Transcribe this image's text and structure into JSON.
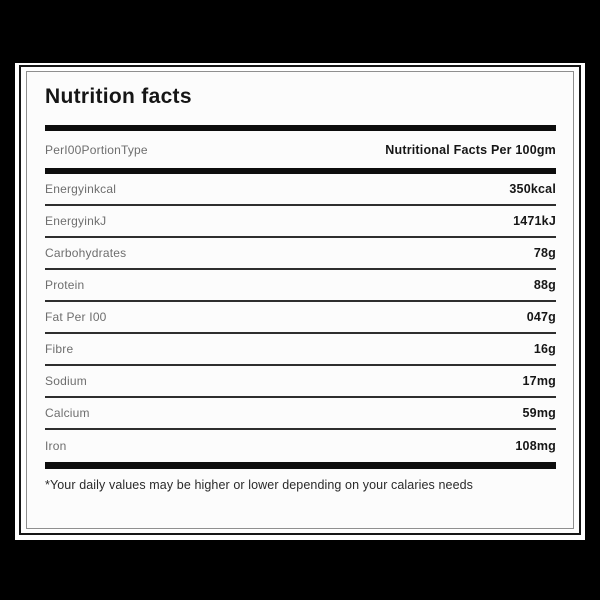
{
  "title": "Nutrition facts",
  "header_row": {
    "label": "PerI00PortionType",
    "value": "Nutritional Facts Per 100gm"
  },
  "rows": [
    {
      "label": "Energyinkcal",
      "value": "350kcal"
    },
    {
      "label": "EnergyinkJ",
      "value": "1471kJ"
    },
    {
      "label": "Carbohydrates",
      "value": "78g"
    },
    {
      "label": "Protein",
      "value": "88g"
    },
    {
      "label": "Fat Per I00",
      "value": "047g"
    },
    {
      "label": "Fibre",
      "value": "16g"
    },
    {
      "label": "Sodium",
      "value": "17mg"
    },
    {
      "label": "Calcium",
      "value": "59mg"
    },
    {
      "label": "Iron",
      "value": "108mg"
    }
  ],
  "footnote": "*Your daily values may be higher or lower depending on your calaries needs",
  "colors": {
    "page_background": "#000000",
    "card_background": "#ffffff",
    "interior_background": "#fcfcfc",
    "divider_bar": "#0d0d0d",
    "row_separator": "#2e2e2e",
    "label_gray": "#6e6e6e",
    "value_dark": "#161616"
  }
}
